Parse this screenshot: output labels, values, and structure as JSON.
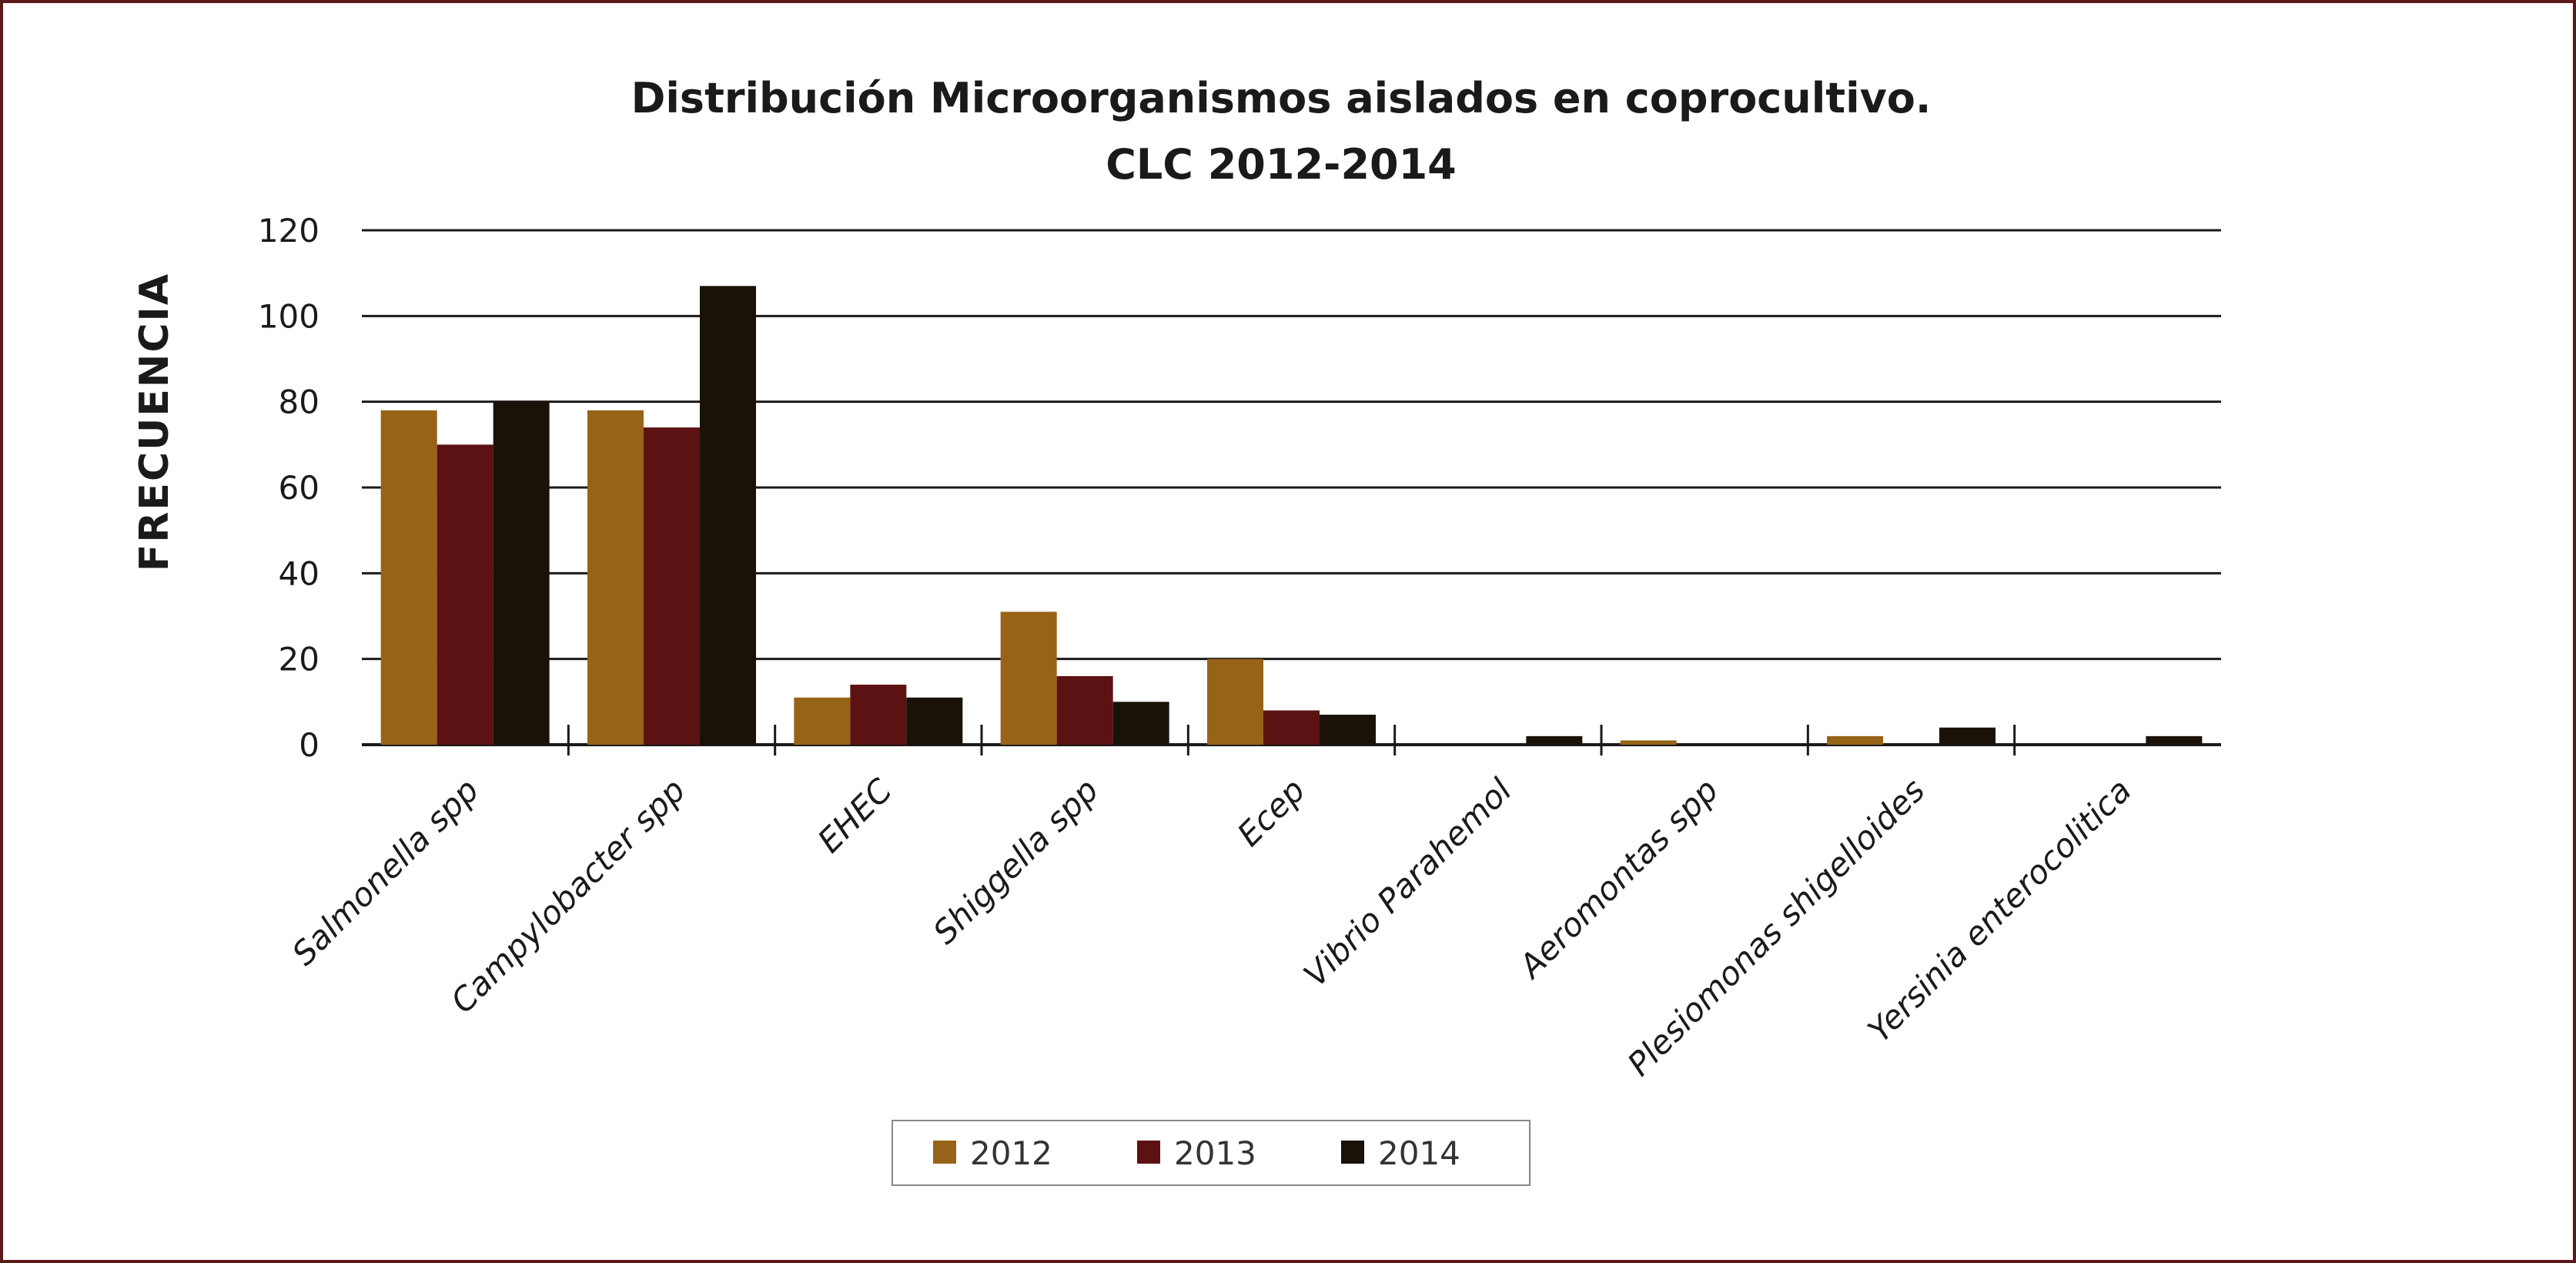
{
  "chart_data": {
    "type": "bar",
    "title": "Distribución Microorganismos aislados en coprocultivo.",
    "subtitle": "CLC 2012-2014",
    "ylabel": "FRECUENCIA",
    "xlabel": "",
    "ylim": [
      0,
      120
    ],
    "yticks": [
      0,
      20,
      40,
      60,
      80,
      100,
      120
    ],
    "grid": true,
    "legend_position": "bottom",
    "categories": [
      "Salmonella spp",
      "Campylobacter spp",
      "EHEC",
      "Shiggella spp",
      "Ecep",
      "Vibrio Parahemol",
      "Aeromontas spp",
      "Plesiomonas shigelloides",
      "Yersinia enterocolitica"
    ],
    "series": [
      {
        "name": "2012",
        "color": "#976317",
        "values": [
          78,
          78,
          11,
          31,
          20,
          0,
          1,
          2,
          0
        ]
      },
      {
        "name": "2013",
        "color": "#5c1212",
        "values": [
          70,
          74,
          14,
          16,
          8,
          0,
          0,
          0,
          0
        ]
      },
      {
        "name": "2014",
        "color": "#1a1208",
        "values": [
          80,
          107,
          11,
          10,
          7,
          2,
          0,
          4,
          2
        ]
      }
    ]
  },
  "frame_color": "#5a1a1a"
}
